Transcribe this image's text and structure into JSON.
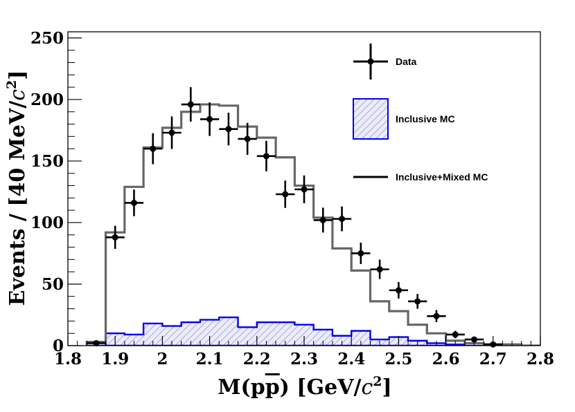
{
  "chart_data": {
    "type": "histogram",
    "title": "",
    "xlabel": "M(pp̄) [GeV/c²]",
    "ylabel": "Events / [40 MeV/c²]",
    "xlabel_parts": {
      "main": "M(p",
      "p_bar": "p",
      "close": ") [GeV/",
      "c": "c",
      "sup": "2",
      "end": "]"
    },
    "ylabel_parts": {
      "main": "Events / [40 MeV/",
      "c": "c",
      "sup": "2",
      "end": "]"
    },
    "xlim": [
      1.8,
      2.8
    ],
    "ylim": [
      0,
      255
    ],
    "x_ticks": [
      "1.8",
      "1.9",
      "2",
      "2.1",
      "2.2",
      "2.3",
      "2.4",
      "2.5",
      "2.6",
      "2.7",
      "2.8"
    ],
    "y_ticks": [
      "0",
      "50",
      "100",
      "150",
      "200",
      "250"
    ],
    "bin_width": 0.04,
    "bin_edges_start": 1.84,
    "series": [
      {
        "name": "Data",
        "kind": "points",
        "color": "#000000",
        "x": [
          1.86,
          1.9,
          1.94,
          1.98,
          2.02,
          2.06,
          2.1,
          2.14,
          2.18,
          2.22,
          2.26,
          2.3,
          2.34,
          2.38,
          2.42,
          2.46,
          2.5,
          2.54,
          2.58,
          2.62,
          2.66,
          2.7
        ],
        "y": [
          2,
          88,
          116,
          160,
          173,
          196,
          184,
          176,
          168,
          154,
          123,
          127,
          102,
          103,
          75,
          62,
          45,
          36,
          24,
          9,
          5,
          1
        ],
        "yerr": [
          1.4,
          9.4,
          10.8,
          12.6,
          13.2,
          14.0,
          13.6,
          13.3,
          13.0,
          12.4,
          11.1,
          11.3,
          10.1,
          10.1,
          8.7,
          7.9,
          6.7,
          6.0,
          4.9,
          3.0,
          2.2,
          1.0
        ]
      },
      {
        "name": "Inclusive MC",
        "kind": "hatched-histogram",
        "color": "#0000ee",
        "hatch_color": "#8888cc",
        "fill": "#e6e6f6",
        "values": [
          0,
          10,
          9,
          18,
          16,
          19,
          21,
          23,
          15,
          19,
          19,
          17,
          13,
          8,
          12,
          5,
          7,
          4,
          2,
          1,
          0,
          0,
          0,
          0
        ]
      },
      {
        "name": "Inclusive+Mixed MC",
        "kind": "step-histogram",
        "color": "#666666",
        "values": [
          3,
          92,
          129,
          161,
          177,
          190,
          196,
          195,
          178,
          169,
          153,
          130,
          104,
          79,
          61,
          36,
          28,
          17,
          10,
          4,
          2,
          1,
          1,
          0
        ]
      }
    ],
    "legend": {
      "placement": "top-right",
      "entries": [
        {
          "label": "Data",
          "icon": "marker-with-error-bars"
        },
        {
          "label": "Inclusive MC",
          "icon": "hatched-box"
        },
        {
          "label": "Inclusive+Mixed MC",
          "icon": "line"
        }
      ]
    }
  }
}
